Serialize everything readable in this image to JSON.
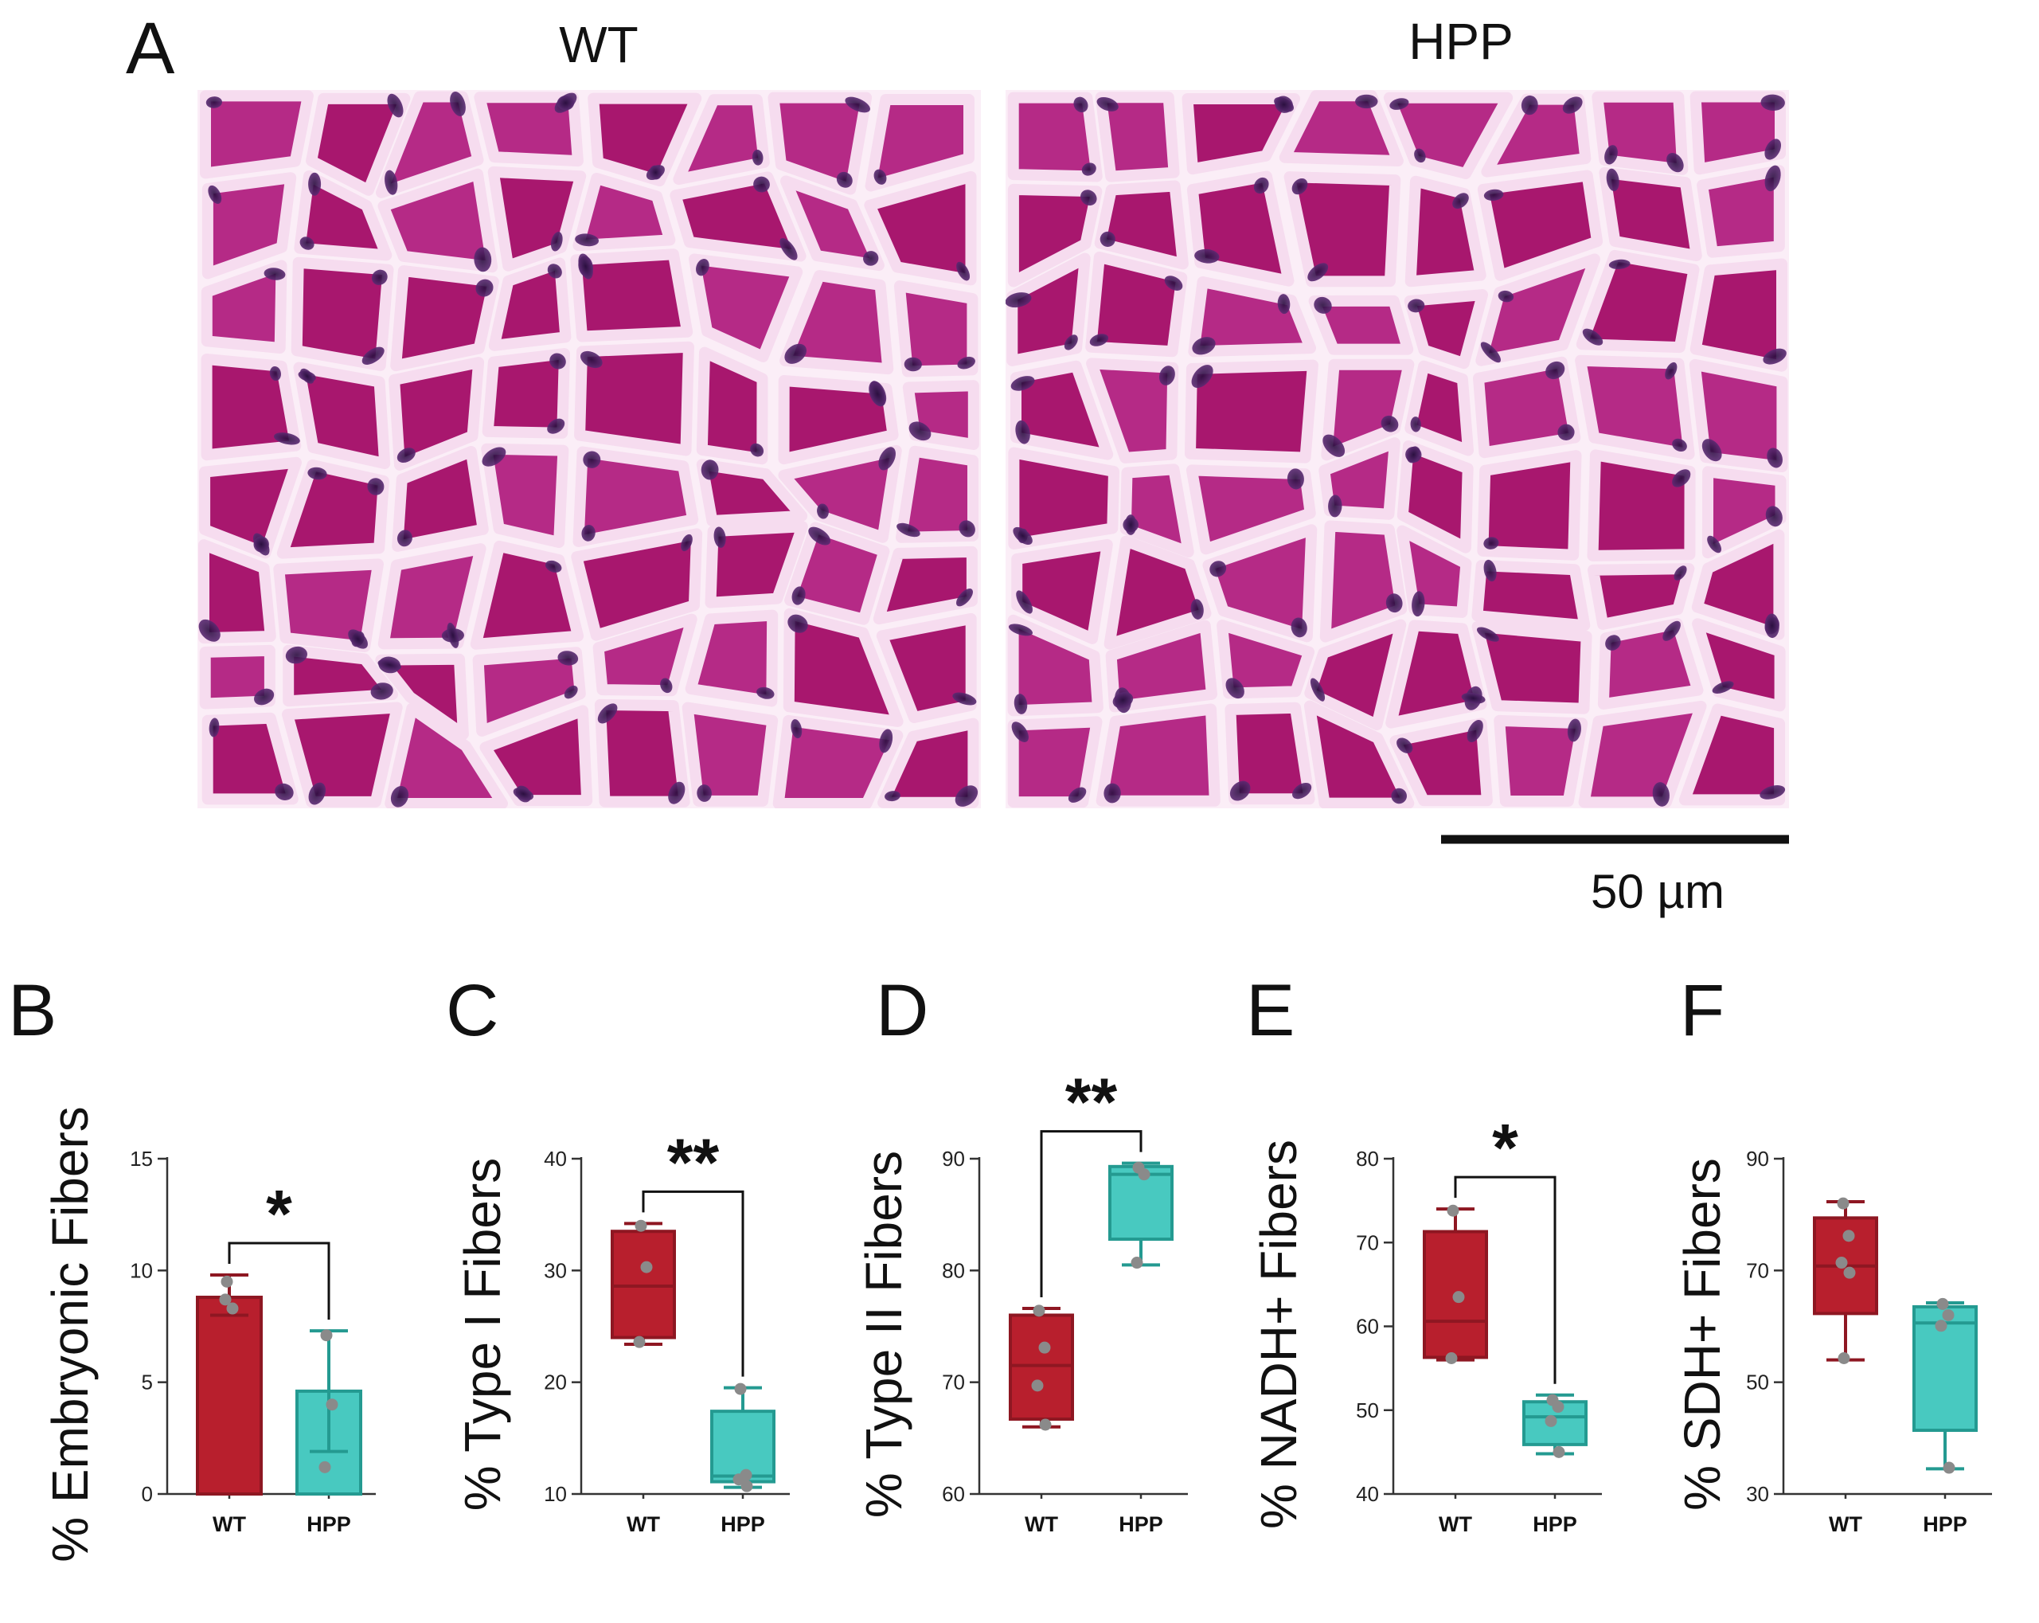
{
  "panel_a": {
    "letter": "A",
    "images": [
      {
        "title": "WT"
      },
      {
        "title": "HPP"
      }
    ],
    "scale_bar_label": "50 µm",
    "colors": {
      "muscle": "#a8176e",
      "muscle_alt": "#b52a86",
      "nucleus": "#3a1550",
      "background": "#fbeef7"
    }
  },
  "chart_data": [
    {
      "panel": "B",
      "type": "bar",
      "ylabel": "% Embryonic Fibers",
      "ylim": [
        0,
        15
      ],
      "yticks": [
        0,
        5,
        10,
        15
      ],
      "categories": [
        "WT",
        "HPP"
      ],
      "colors": [
        "#b81f2d",
        "#48c9c0"
      ],
      "edge_colors": [
        "#8e1722",
        "#249a91"
      ],
      "series": [
        {
          "category": "WT",
          "mean": 8.8,
          "err": [
            8.0,
            9.8
          ],
          "points": [
            9.5,
            8.3,
            8.7
          ]
        },
        {
          "category": "HPP",
          "mean": 4.6,
          "err": [
            1.9,
            7.3
          ],
          "points": [
            7.1,
            4.0,
            1.2
          ]
        }
      ],
      "significance": "*"
    },
    {
      "panel": "C",
      "type": "box",
      "ylabel": "% Type I Fibers",
      "ylim": [
        10,
        40
      ],
      "yticks": [
        10,
        20,
        30,
        40
      ],
      "categories": [
        "WT",
        "HPP"
      ],
      "colors": [
        "#b81f2d",
        "#48c9c0"
      ],
      "edge_colors": [
        "#8e1722",
        "#249a91"
      ],
      "series": [
        {
          "category": "WT",
          "min": 23.4,
          "q1": 24.0,
          "median": 28.6,
          "q3": 33.5,
          "max": 34.2,
          "points": [
            34.0,
            30.3,
            23.6
          ]
        },
        {
          "category": "HPP",
          "min": 10.6,
          "q1": 11.1,
          "median": 11.6,
          "q3": 17.4,
          "max": 19.5,
          "points": [
            19.4,
            11.7,
            11.3,
            10.7
          ]
        }
      ],
      "significance": "**"
    },
    {
      "panel": "D",
      "type": "box",
      "ylabel": "% Type II Fibers",
      "ylim": [
        60,
        90
      ],
      "yticks": [
        60,
        70,
        80,
        90
      ],
      "categories": [
        "WT",
        "HPP"
      ],
      "colors": [
        "#b81f2d",
        "#48c9c0"
      ],
      "edge_colors": [
        "#8e1722",
        "#249a91"
      ],
      "series": [
        {
          "category": "WT",
          "min": 66.0,
          "q1": 66.7,
          "median": 71.5,
          "q3": 76.0,
          "max": 76.6,
          "points": [
            76.4,
            73.1,
            69.7,
            66.2
          ]
        },
        {
          "category": "HPP",
          "min": 80.5,
          "q1": 82.8,
          "median": 88.6,
          "q3": 89.3,
          "max": 89.6,
          "points": [
            89.2,
            88.6,
            80.7
          ]
        }
      ],
      "significance": "**"
    },
    {
      "panel": "E",
      "type": "box",
      "ylabel": "% NADH+ Fibers",
      "ylim": [
        40,
        80
      ],
      "yticks": [
        40,
        50,
        60,
        70,
        80
      ],
      "categories": [
        "WT",
        "HPP"
      ],
      "colors": [
        "#b81f2d",
        "#48c9c0"
      ],
      "edge_colors": [
        "#8e1722",
        "#249a91"
      ],
      "series": [
        {
          "category": "WT",
          "min": 56.0,
          "q1": 56.3,
          "median": 60.6,
          "q3": 71.3,
          "max": 74.0,
          "points": [
            73.8,
            63.5,
            56.2
          ]
        },
        {
          "category": "HPP",
          "min": 44.8,
          "q1": 45.9,
          "median": 49.2,
          "q3": 51.0,
          "max": 51.8,
          "points": [
            51.2,
            50.4,
            48.7,
            45.0
          ]
        }
      ],
      "significance": "*"
    },
    {
      "panel": "F",
      "type": "box",
      "ylabel": "% SDH+ Fibers",
      "ylim": [
        30,
        90
      ],
      "yticks": [
        30,
        50,
        70,
        90
      ],
      "categories": [
        "WT",
        "HPP"
      ],
      "colors": [
        "#b81f2d",
        "#48c9c0"
      ],
      "edge_colors": [
        "#8e1722",
        "#249a91"
      ],
      "series": [
        {
          "category": "WT",
          "min": 54.0,
          "q1": 62.3,
          "median": 70.8,
          "q3": 79.4,
          "max": 82.3,
          "points": [
            82.0,
            76.2,
            71.4,
            69.6,
            54.3
          ]
        },
        {
          "category": "HPP",
          "min": 34.5,
          "q1": 41.4,
          "median": 60.6,
          "q3": 63.5,
          "max": 64.2,
          "points": [
            64.0,
            62.0,
            60.1,
            34.7
          ]
        }
      ],
      "significance": ""
    }
  ]
}
